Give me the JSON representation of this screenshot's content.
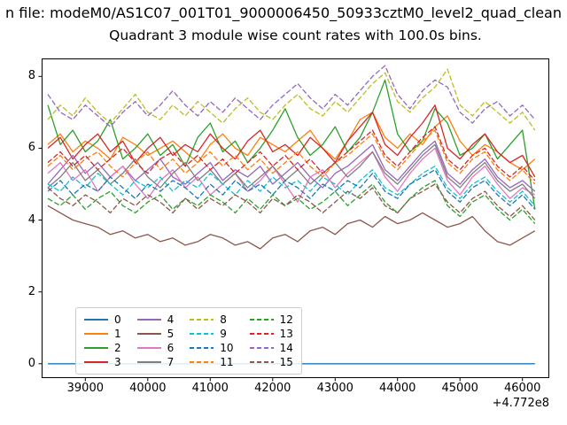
{
  "chart_data": {
    "type": "line",
    "sup_title": "n file: modeM0/AS1C07_001T01_9000006450_50933cztM0_level2_quad_clean",
    "title": "Quadrant 3 module wise count rates with 100.0s bins.",
    "x_offset_label": "+4.772e8",
    "xlabel": "",
    "ylabel": "",
    "xlim": [
      38300,
      46430
    ],
    "ylim": [
      -0.4,
      8.5
    ],
    "xticks": [
      39000,
      40000,
      41000,
      42000,
      43000,
      44000,
      45000,
      46000
    ],
    "yticks": [
      0,
      2,
      4,
      6,
      8
    ],
    "legend_position": "lower left inside axes",
    "grid": false,
    "x": [
      38400,
      38600,
      38800,
      39000,
      39200,
      39400,
      39600,
      39800,
      40000,
      40200,
      40400,
      40600,
      40800,
      41000,
      41200,
      41400,
      41600,
      41800,
      42000,
      42200,
      42400,
      42600,
      42800,
      43000,
      43200,
      43400,
      43600,
      43800,
      44000,
      44200,
      44400,
      44600,
      44800,
      45000,
      45200,
      45400,
      45600,
      45800,
      46000,
      46200
    ],
    "series": [
      {
        "label": "0",
        "color": "#1f77b4",
        "dash": false,
        "values": [
          0,
          0,
          0,
          0,
          0,
          0,
          0,
          0,
          0,
          0,
          0,
          0,
          0,
          0,
          0,
          0,
          0,
          0,
          0,
          0,
          0,
          0,
          0,
          0,
          0,
          0,
          0,
          0,
          0,
          0,
          0,
          0,
          0,
          0,
          0,
          0,
          0,
          0,
          0,
          0
        ]
      },
      {
        "label": "1",
        "color": "#ff7f0e",
        "dash": false,
        "values": [
          6.1,
          6.4,
          5.9,
          6.2,
          6.0,
          5.7,
          6.3,
          6.1,
          5.8,
          6.0,
          6.2,
          5.9,
          5.6,
          6.1,
          6.4,
          6.0,
          5.8,
          6.3,
          6.1,
          5.9,
          6.2,
          6.5,
          6.0,
          5.7,
          6.2,
          6.8,
          7.0,
          6.3,
          6.0,
          6.4,
          6.1,
          6.6,
          6.9,
          6.2,
          5.8,
          6.1,
          5.9,
          5.6,
          5.4,
          5.7
        ]
      },
      {
        "label": "2",
        "color": "#2ca02c",
        "dash": false,
        "values": [
          7.2,
          6.1,
          6.5,
          5.9,
          6.2,
          6.8,
          5.7,
          6.0,
          6.4,
          5.8,
          6.1,
          5.5,
          6.3,
          6.7,
          5.9,
          6.2,
          5.6,
          6.0,
          6.5,
          7.1,
          6.3,
          5.8,
          6.1,
          6.6,
          5.9,
          6.3,
          7.0,
          7.9,
          6.4,
          5.9,
          6.2,
          7.1,
          6.7,
          5.8,
          6.0,
          6.4,
          5.7,
          6.1,
          6.5,
          4.3
        ]
      },
      {
        "label": "3",
        "color": "#d62728",
        "dash": false,
        "values": [
          6.0,
          6.3,
          5.7,
          6.1,
          6.4,
          5.9,
          6.2,
          5.6,
          6.0,
          6.3,
          5.8,
          6.1,
          5.9,
          6.4,
          6.0,
          5.7,
          6.2,
          6.5,
          5.9,
          6.1,
          5.8,
          6.3,
          6.0,
          5.6,
          6.2,
          6.6,
          7.0,
          6.1,
          5.8,
          6.3,
          6.7,
          7.2,
          6.0,
          5.7,
          6.1,
          6.4,
          5.9,
          5.6,
          5.8,
          5.2
        ]
      },
      {
        "label": "4",
        "color": "#9467bd",
        "dash": false,
        "values": [
          5.0,
          5.4,
          5.8,
          5.3,
          5.6,
          5.2,
          5.5,
          5.1,
          5.4,
          5.7,
          5.2,
          5.0,
          5.3,
          5.6,
          5.1,
          5.4,
          5.2,
          5.5,
          5.0,
          5.3,
          5.6,
          5.2,
          4.9,
          5.3,
          5.5,
          5.8,
          6.1,
          5.4,
          5.1,
          5.5,
          5.9,
          6.2,
          5.3,
          5.0,
          5.4,
          5.7,
          5.2,
          4.9,
          5.1,
          4.8
        ]
      },
      {
        "label": "5",
        "color": "#8c564b",
        "dash": false,
        "values": [
          4.4,
          4.2,
          4.0,
          3.9,
          3.8,
          3.6,
          3.7,
          3.5,
          3.6,
          3.4,
          3.5,
          3.3,
          3.4,
          3.6,
          3.5,
          3.3,
          3.4,
          3.2,
          3.5,
          3.6,
          3.4,
          3.7,
          3.8,
          3.6,
          3.9,
          4.0,
          3.8,
          4.1,
          3.9,
          4.0,
          4.2,
          4.0,
          3.8,
          3.9,
          4.1,
          3.7,
          3.4,
          3.3,
          3.5,
          3.7
        ]
      },
      {
        "label": "6",
        "color": "#e377c2",
        "dash": false,
        "values": [
          5.3,
          5.6,
          5.1,
          5.4,
          4.8,
          5.2,
          5.5,
          5.0,
          4.6,
          5.1,
          5.4,
          4.9,
          5.2,
          4.7,
          5.0,
          5.3,
          4.8,
          5.1,
          5.5,
          5.0,
          4.5,
          5.2,
          5.4,
          4.9,
          5.3,
          5.6,
          5.9,
          5.2,
          4.8,
          5.3,
          5.7,
          6.0,
          5.1,
          4.7,
          5.2,
          5.5,
          5.0,
          4.6,
          4.9,
          4.7
        ]
      },
      {
        "label": "7",
        "color": "#7f7f7f",
        "dash": false,
        "values": [
          4.9,
          5.2,
          5.6,
          5.1,
          5.4,
          5.0,
          5.3,
          5.7,
          5.2,
          4.9,
          5.3,
          5.6,
          5.1,
          5.4,
          5.0,
          5.3,
          4.9,
          5.2,
          5.5,
          5.1,
          5.4,
          5.0,
          5.3,
          5.6,
          5.2,
          5.5,
          5.9,
          5.3,
          5.0,
          5.4,
          5.8,
          6.1,
          5.2,
          4.9,
          5.3,
          5.6,
          5.1,
          4.8,
          5.0,
          4.6
        ]
      },
      {
        "label": "8",
        "color": "#bcbd22",
        "dash": true,
        "values": [
          6.8,
          7.2,
          6.9,
          7.4,
          7.0,
          6.7,
          7.1,
          7.5,
          7.0,
          6.8,
          7.2,
          6.9,
          7.3,
          7.0,
          6.7,
          7.1,
          7.4,
          7.0,
          6.8,
          7.2,
          7.5,
          7.1,
          6.9,
          7.3,
          7.0,
          7.4,
          7.8,
          8.1,
          7.3,
          7.0,
          7.4,
          7.7,
          8.2,
          7.2,
          6.9,
          7.3,
          7.0,
          6.7,
          7.0,
          6.5
        ]
      },
      {
        "label": "9",
        "color": "#17becf",
        "dash": true,
        "values": [
          5.0,
          4.8,
          5.2,
          4.9,
          5.3,
          5.0,
          4.7,
          5.1,
          4.9,
          5.2,
          4.8,
          5.1,
          4.9,
          5.3,
          5.0,
          4.7,
          5.1,
          4.8,
          5.2,
          4.9,
          5.1,
          4.8,
          5.2,
          5.0,
          4.7,
          5.1,
          5.4,
          4.9,
          4.7,
          5.0,
          5.3,
          5.5,
          4.9,
          4.6,
          5.0,
          5.2,
          4.8,
          4.5,
          4.8,
          4.4
        ]
      },
      {
        "label": "10",
        "color": "#1f77b4",
        "dash": true,
        "values": [
          4.8,
          5.1,
          4.7,
          5.0,
          4.8,
          5.2,
          4.9,
          4.6,
          5.0,
          4.8,
          5.1,
          4.9,
          4.6,
          5.0,
          4.7,
          5.1,
          4.8,
          5.0,
          4.7,
          5.1,
          4.9,
          4.6,
          5.0,
          4.8,
          5.1,
          4.9,
          5.3,
          4.8,
          4.6,
          5.0,
          5.2,
          5.4,
          4.8,
          4.5,
          4.9,
          5.1,
          4.7,
          4.4,
          4.7,
          4.3
        ]
      },
      {
        "label": "11",
        "color": "#ff7f0e",
        "dash": true,
        "values": [
          5.5,
          5.8,
          5.4,
          5.7,
          5.9,
          5.5,
          5.2,
          5.6,
          5.9,
          5.4,
          5.7,
          5.3,
          5.6,
          5.9,
          5.5,
          5.8,
          5.4,
          5.7,
          5.3,
          5.6,
          5.9,
          5.5,
          5.2,
          5.6,
          5.8,
          6.1,
          6.4,
          5.7,
          5.4,
          5.8,
          6.2,
          6.5,
          5.6,
          5.3,
          5.7,
          5.9,
          5.4,
          5.1,
          5.4,
          5.0
        ]
      },
      {
        "label": "12",
        "color": "#2ca02c",
        "dash": true,
        "values": [
          4.6,
          4.4,
          4.7,
          4.3,
          4.6,
          4.8,
          4.4,
          4.2,
          4.5,
          4.7,
          4.3,
          4.6,
          4.4,
          4.7,
          4.5,
          4.2,
          4.6,
          4.3,
          4.7,
          4.4,
          4.6,
          4.3,
          4.5,
          4.8,
          4.4,
          4.7,
          5.0,
          4.5,
          4.2,
          4.6,
          4.9,
          5.1,
          4.4,
          4.1,
          4.5,
          4.7,
          4.3,
          4.0,
          4.3,
          3.9
        ]
      },
      {
        "label": "13",
        "color": "#d62728",
        "dash": true,
        "values": [
          5.6,
          5.9,
          5.5,
          5.8,
          5.4,
          5.7,
          6.0,
          5.6,
          5.3,
          5.7,
          5.9,
          5.5,
          5.8,
          5.4,
          5.7,
          5.3,
          5.6,
          5.9,
          5.5,
          5.8,
          5.4,
          5.7,
          5.3,
          5.6,
          5.9,
          6.2,
          6.5,
          5.8,
          5.5,
          5.9,
          6.3,
          6.6,
          5.7,
          5.4,
          5.8,
          6.0,
          5.5,
          5.2,
          5.5,
          5.1
        ]
      },
      {
        "label": "14",
        "color": "#9467bd",
        "dash": true,
        "values": [
          7.5,
          7.0,
          6.8,
          7.2,
          6.9,
          6.6,
          7.0,
          7.3,
          6.9,
          7.2,
          7.6,
          7.2,
          6.9,
          7.3,
          7.0,
          7.4,
          7.1,
          6.8,
          7.2,
          7.5,
          7.8,
          7.4,
          7.1,
          7.5,
          7.2,
          7.6,
          8.0,
          8.3,
          7.5,
          7.1,
          7.6,
          7.9,
          7.7,
          7.0,
          6.7,
          7.1,
          7.3,
          6.9,
          7.2,
          6.8
        ]
      },
      {
        "label": "15",
        "color": "#8c564b",
        "dash": true,
        "values": [
          4.9,
          4.6,
          4.4,
          4.7,
          4.5,
          4.2,
          4.6,
          4.4,
          4.7,
          4.5,
          4.2,
          4.6,
          4.3,
          4.6,
          4.4,
          4.7,
          4.5,
          4.2,
          4.6,
          4.4,
          4.7,
          4.5,
          4.2,
          4.5,
          4.8,
          4.6,
          4.9,
          4.4,
          4.2,
          4.6,
          4.8,
          5.0,
          4.5,
          4.2,
          4.6,
          4.8,
          4.4,
          4.1,
          4.4,
          4.0
        ]
      }
    ]
  }
}
